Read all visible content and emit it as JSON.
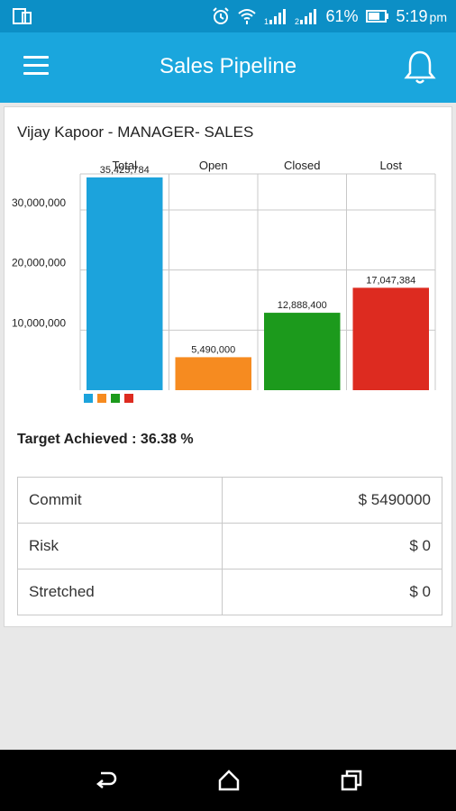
{
  "status_bar": {
    "battery": "61%",
    "time": "5:19",
    "ampm": "pm"
  },
  "app_bar": {
    "title": "Sales Pipeline"
  },
  "card": {
    "manager": "Vijay Kapoor - MANAGER- SALES",
    "target_achieved": "Target Achieved : 36.38 %"
  },
  "chart_data": {
    "type": "bar",
    "categories": [
      "Total",
      "Open",
      "Closed",
      "Lost"
    ],
    "values": [
      35425784,
      5490000,
      12888400,
      17047384
    ],
    "value_labels": [
      "35,425,784",
      "5,490,000",
      "12,888,400",
      "17,047,384"
    ],
    "colors": [
      "#1ca3dc",
      "#f68b20",
      "#1c9a1c",
      "#dd2b20"
    ],
    "yticks": [
      10000000,
      20000000,
      30000000
    ],
    "ytick_labels": [
      "10,000,000",
      "20,000,000",
      "30,000,000"
    ],
    "ylim": [
      0,
      36000000
    ],
    "grid": true,
    "legend": "bottom-left"
  },
  "summary_table": [
    {
      "label": "Commit",
      "value": "$ 5490000"
    },
    {
      "label": "Risk",
      "value": "$ 0"
    },
    {
      "label": "Stretched",
      "value": "$ 0"
    }
  ]
}
